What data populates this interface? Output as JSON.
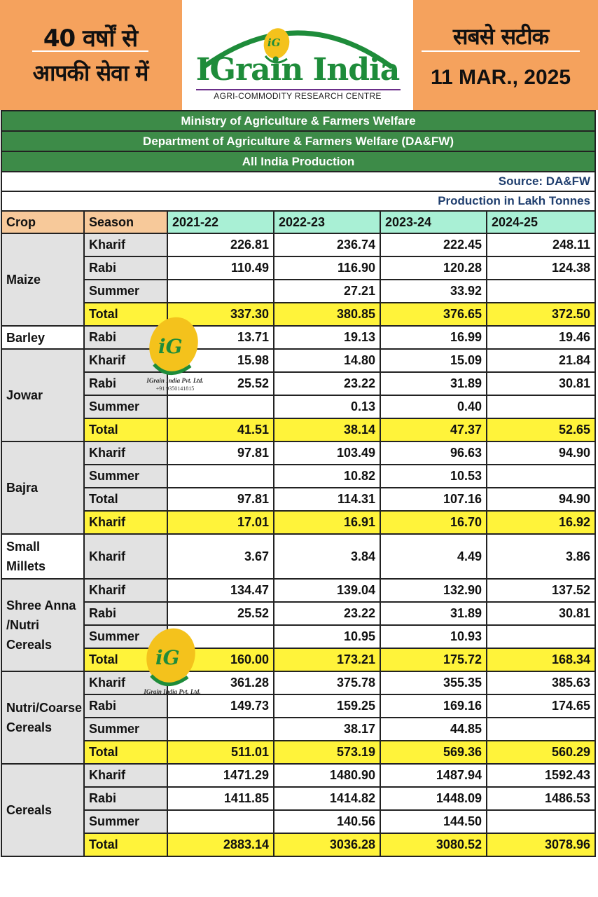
{
  "header": {
    "left_line1": "40 वर्षों से",
    "left_line2": "आपकी सेवा में",
    "logo_mark": "iG",
    "logo_text": "IGrain India",
    "logo_sub": "AGRI-COMMODITY RESEARCH CENTRE",
    "right_line1": "सबसे सटीक",
    "date": "11 MAR., 2025"
  },
  "table": {
    "title1": "Ministry of Agriculture & Farmers Welfare",
    "title2": "Department of Agriculture & Farmers Welfare (DA&FW)",
    "title3": "All India Production",
    "source": "Source: DA&FW",
    "unit": "Production in Lakh Tonnes",
    "columns": [
      "Crop",
      "Season",
      "2021-22",
      "2022-23",
      "2023-24",
      "2024-25"
    ],
    "groups": [
      {
        "crop": "Maize",
        "rows": [
          {
            "season": "Kharif",
            "values": [
              "226.81",
              "236.74",
              "222.45",
              "248.11"
            ],
            "highlight": false
          },
          {
            "season": "Rabi",
            "values": [
              "110.49",
              "116.90",
              "120.28",
              "124.38"
            ],
            "highlight": false
          },
          {
            "season": "Summer",
            "values": [
              "",
              "27.21",
              "33.92",
              ""
            ],
            "highlight": false
          },
          {
            "season": "Total",
            "values": [
              "337.30",
              "380.85",
              "376.65",
              "372.50"
            ],
            "highlight": true
          }
        ]
      },
      {
        "crop": "Barley",
        "white": true,
        "rows": [
          {
            "season": "Rabi",
            "values": [
              "13.71",
              "19.13",
              "16.99",
              "19.46"
            ],
            "highlight": false
          }
        ]
      },
      {
        "crop": "Jowar",
        "rows": [
          {
            "season": "Kharif",
            "values": [
              "15.98",
              "14.80",
              "15.09",
              "21.84"
            ],
            "highlight": false
          },
          {
            "season": "Rabi",
            "values": [
              "25.52",
              "23.22",
              "31.89",
              "30.81"
            ],
            "highlight": false
          },
          {
            "season": "Summer",
            "values": [
              "",
              "0.13",
              "0.40",
              ""
            ],
            "highlight": false
          },
          {
            "season": "Total",
            "values": [
              "41.51",
              "38.14",
              "47.37",
              "52.65"
            ],
            "highlight": true
          }
        ]
      },
      {
        "crop": "Bajra",
        "rows": [
          {
            "season": "Kharif",
            "values": [
              "97.81",
              "103.49",
              "96.63",
              "94.90"
            ],
            "highlight": false
          },
          {
            "season": "Summer",
            "values": [
              "",
              "10.82",
              "10.53",
              ""
            ],
            "highlight": false
          },
          {
            "season": "Total",
            "values": [
              "97.81",
              "114.31",
              "107.16",
              "94.90"
            ],
            "highlight": false
          },
          {
            "season": "Kharif",
            "values": [
              "17.01",
              "16.91",
              "16.70",
              "16.92"
            ],
            "highlight": true
          }
        ]
      },
      {
        "crop": "Small Millets",
        "white": true,
        "tall": true,
        "rows": [
          {
            "season": "Kharif",
            "values": [
              "3.67",
              "3.84",
              "4.49",
              "3.86"
            ],
            "highlight": false
          }
        ]
      },
      {
        "crop": "Shree Anna /Nutri Cereals",
        "rows": [
          {
            "season": "Kharif",
            "values": [
              "134.47",
              "139.04",
              "132.90",
              "137.52"
            ],
            "highlight": false
          },
          {
            "season": "Rabi",
            "values": [
              "25.52",
              "23.22",
              "31.89",
              "30.81"
            ],
            "highlight": false
          },
          {
            "season": "Summer",
            "values": [
              "",
              "10.95",
              "10.93",
              ""
            ],
            "highlight": false
          },
          {
            "season": "Total",
            "values": [
              "160.00",
              "173.21",
              "175.72",
              "168.34"
            ],
            "highlight": true
          }
        ]
      },
      {
        "crop": "Nutri/Coarse Cereals",
        "rows": [
          {
            "season": "Kharif",
            "values": [
              "361.28",
              "375.78",
              "355.35",
              "385.63"
            ],
            "highlight": false
          },
          {
            "season": "Rabi",
            "values": [
              "149.73",
              "159.25",
              "169.16",
              "174.65"
            ],
            "highlight": false
          },
          {
            "season": "Summer",
            "values": [
              "",
              "38.17",
              "44.85",
              ""
            ],
            "highlight": false
          },
          {
            "season": "Total",
            "values": [
              "511.01",
              "573.19",
              "569.36",
              "560.29"
            ],
            "highlight": true
          }
        ]
      },
      {
        "crop": "Cereals",
        "rows": [
          {
            "season": "Kharif",
            "values": [
              "1471.29",
              "1480.90",
              "1487.94",
              "1592.43"
            ],
            "highlight": false
          },
          {
            "season": "Rabi",
            "values": [
              "1411.85",
              "1414.82",
              "1448.09",
              "1486.53"
            ],
            "highlight": false
          },
          {
            "season": "Summer",
            "values": [
              "",
              "140.56",
              "144.50",
              ""
            ],
            "highlight": false
          },
          {
            "season": "Total",
            "values": [
              "2883.14",
              "3036.28",
              "3080.52",
              "3078.96"
            ],
            "highlight": true
          }
        ]
      }
    ]
  },
  "watermarks": [
    {
      "mark": "iG",
      "company": "IGrain India Pvt. Ltd.",
      "phone": "+91 9350141815"
    },
    {
      "mark": "iG",
      "company": "IGrain India Pvt. Ltd."
    }
  ],
  "colors": {
    "header_bg": "#F5A25D",
    "banner_green": "#3D8B48",
    "logo_green": "#1E8C3A",
    "total_yellow": "#FFF33A",
    "crop_gray": "#E2E2E2",
    "year_head": "#A9F0D5",
    "crop_head": "#F7C99A"
  }
}
